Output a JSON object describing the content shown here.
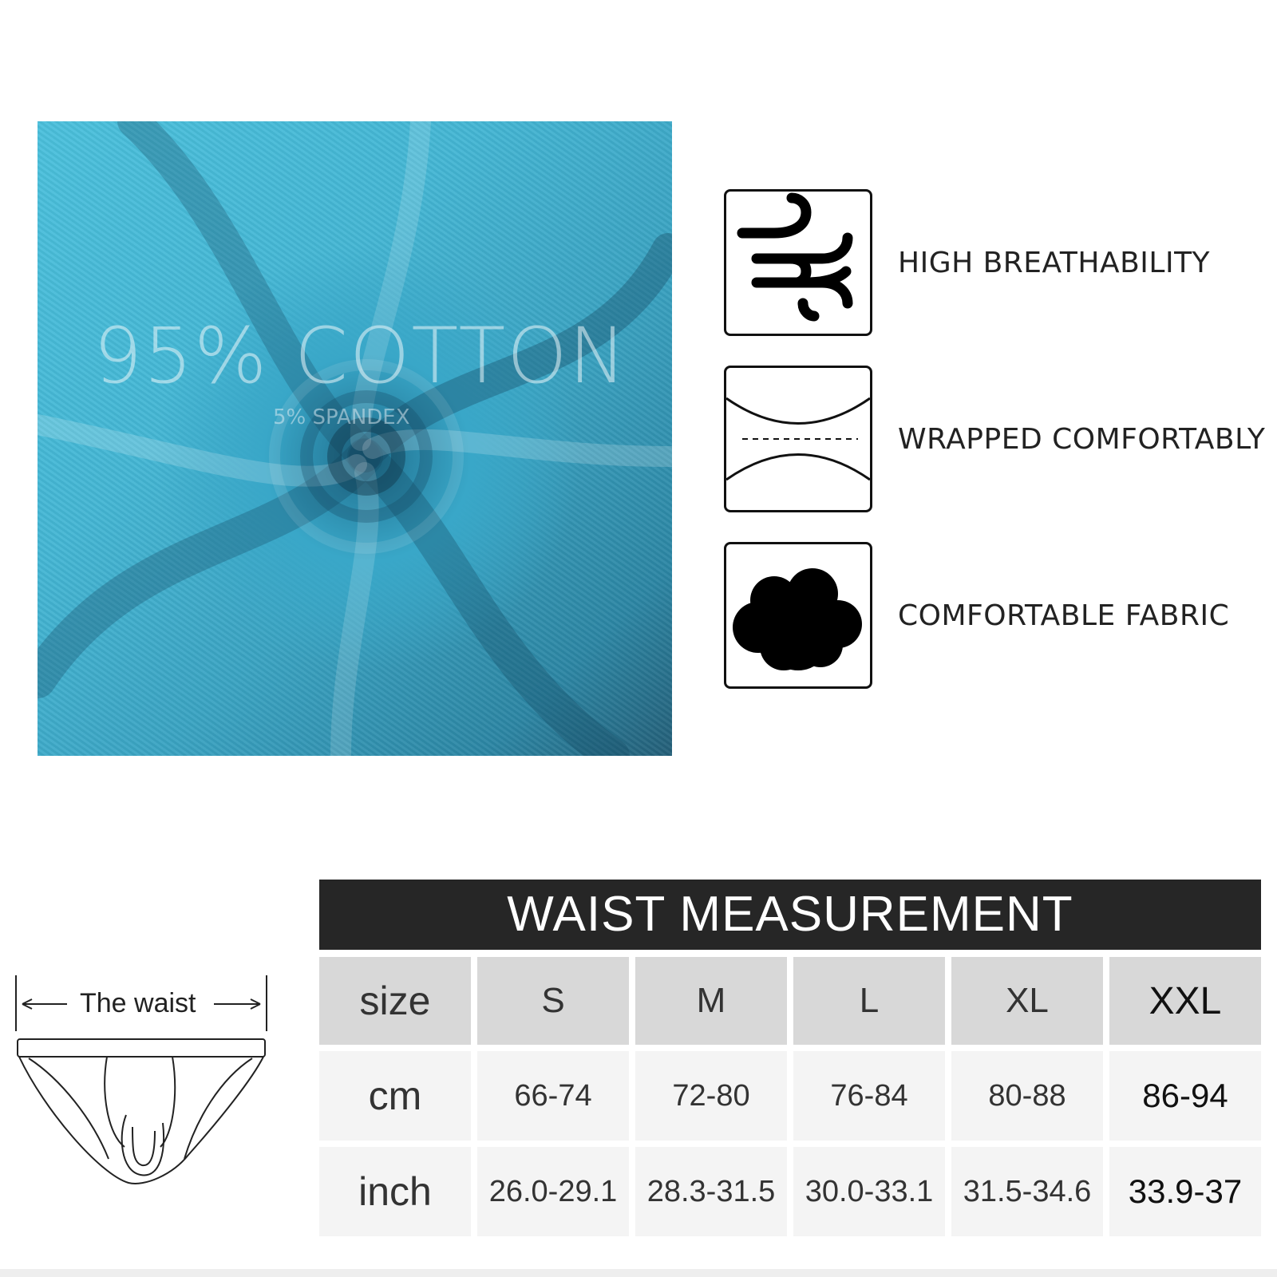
{
  "fabric": {
    "composition_main": "95% COTTON",
    "composition_sub": "5% SPANDEX",
    "color": "#3aa3c2"
  },
  "features": [
    {
      "icon": "wind-icon",
      "label": "HIGH BREATHABILITY"
    },
    {
      "icon": "stretch-icon",
      "label": "WRAPPED COMFORTABLY"
    },
    {
      "icon": "cloud-icon",
      "label": "COMFORTABLE FABRIC"
    }
  ],
  "waist_diagram": {
    "label": "The waist"
  },
  "size_table": {
    "title": "WAIST MEASUREMENT",
    "header": [
      "size",
      "S",
      "M",
      "L",
      "XL",
      "XXL"
    ],
    "rows": [
      [
        "cm",
        "66-74",
        "72-80",
        "76-84",
        "80-88",
        "86-94"
      ],
      [
        "inch",
        "26.0-29.1",
        "28.3-31.5",
        "30.0-33.1",
        "31.5-34.6",
        "33.9-37"
      ]
    ]
  },
  "colors": {
    "title_bar": "#262626",
    "header_cell": "#d8d8d8",
    "body_cell": "#f4f4f4"
  }
}
